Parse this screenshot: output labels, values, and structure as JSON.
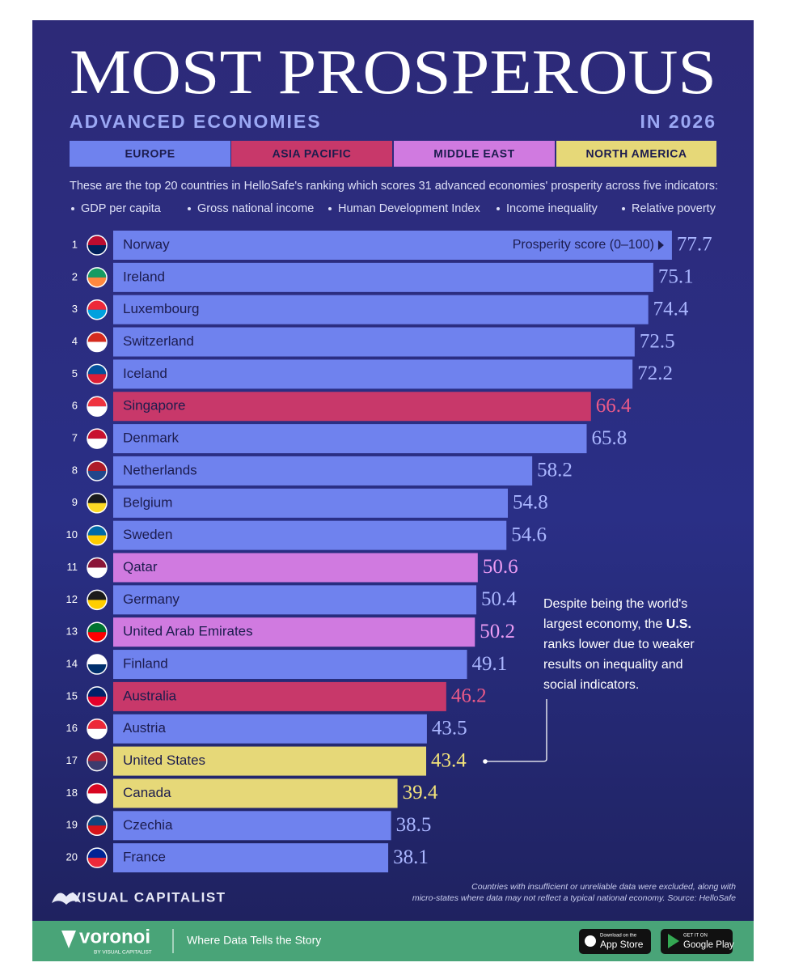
{
  "chart_data": {
    "type": "bar",
    "title": "MOST PROSPEROUS",
    "subtitle": "ADVANCED ECONOMIES",
    "year": "IN 2026",
    "description": "These are the top 20 countries in HelloSafe's ranking which scores 31 advanced economies' prosperity across five indicators:",
    "indicators": [
      "GDP per capita",
      "Gross national income",
      "Human Development Index",
      "Income inequality",
      "Relative poverty"
    ],
    "value_axis_label": "Prosperity score (0–100)",
    "ranks": [
      1,
      2,
      3,
      4,
      5,
      6,
      7,
      8,
      9,
      10,
      11,
      12,
      13,
      14,
      15,
      16,
      17,
      18,
      19,
      20
    ],
    "categories": [
      "Norway",
      "Ireland",
      "Luxembourg",
      "Switzerland",
      "Iceland",
      "Singapore",
      "Denmark",
      "Netherlands",
      "Belgium",
      "Sweden",
      "Qatar",
      "Germany",
      "United Arab Emirates",
      "Finland",
      "Australia",
      "Austria",
      "United States",
      "Canada",
      "Czechia",
      "France"
    ],
    "flag_colors": [
      [
        "#ba0c2f",
        "#00205b"
      ],
      [
        "#169b62",
        "#ff883e"
      ],
      [
        "#ed2939",
        "#00a1de"
      ],
      [
        "#d52b1e",
        "#ffffff"
      ],
      [
        "#02529c",
        "#dc1e35"
      ],
      [
        "#ef3340",
        "#ffffff"
      ],
      [
        "#c8102e",
        "#ffffff"
      ],
      [
        "#ae1c28",
        "#21468b"
      ],
      [
        "#1a1a1a",
        "#fdda24"
      ],
      [
        "#006aa7",
        "#fecc00"
      ],
      [
        "#8a1538",
        "#ffffff"
      ],
      [
        "#1a1a1a",
        "#ffce00"
      ],
      [
        "#00732f",
        "#ff0000"
      ],
      [
        "#ffffff",
        "#002f6c"
      ],
      [
        "#012169",
        "#e4002b"
      ],
      [
        "#ed2939",
        "#ffffff"
      ],
      [
        "#b22234",
        "#3c3b6e"
      ],
      [
        "#d80621",
        "#ffffff"
      ],
      [
        "#11457e",
        "#d7141a"
      ],
      [
        "#002395",
        "#ed2939"
      ]
    ],
    "series": [
      {
        "name": "EUROPE",
        "color": "#6f82ee",
        "label_color": "#aab6ff",
        "values": [
          77.7,
          75.1,
          74.4,
          72.5,
          72.2,
          null,
          65.8,
          58.2,
          54.8,
          54.6,
          null,
          50.4,
          null,
          49.1,
          null,
          43.5,
          null,
          null,
          38.5,
          38.1
        ]
      },
      {
        "name": "ASIA PACIFIC",
        "color": "#c8386a",
        "label_color": "#ec5a88",
        "values": [
          null,
          null,
          null,
          null,
          null,
          66.4,
          null,
          null,
          null,
          null,
          null,
          null,
          null,
          null,
          46.2,
          null,
          null,
          null,
          null,
          null
        ]
      },
      {
        "name": "MIDDLE EAST",
        "color": "#d07ae0",
        "label_color": "#eb9cf3",
        "values": [
          null,
          null,
          null,
          null,
          null,
          null,
          null,
          null,
          null,
          null,
          50.6,
          null,
          50.2,
          null,
          null,
          null,
          null,
          null,
          null,
          null
        ]
      },
      {
        "name": "NORTH AMERICA",
        "color": "#e6d878",
        "label_color": "#f2e27a",
        "values": [
          null,
          null,
          null,
          null,
          null,
          null,
          null,
          null,
          null,
          null,
          null,
          null,
          null,
          null,
          null,
          null,
          43.4,
          39.4,
          null,
          null
        ]
      }
    ],
    "annotation": {
      "lines": [
        "Despite being the world's",
        "largest economy, the ",
        "U.S.",
        "ranks lower due to weaker",
        "results on inequality and",
        "social indicators."
      ]
    },
    "footnote": [
      "Countries with insufficient or unreliable data were excluded, along with",
      "micro-states where data may not reflect a typical national economy. Source: HelloSafe"
    ],
    "brand": "VISUAL CAPITALIST",
    "footer": {
      "logo": "voronoi",
      "logo_sub": "BY VISUAL CAPITALIST",
      "tagline": "Where Data Tells the Story",
      "app_store": [
        "Download on the",
        "App Store"
      ],
      "google_play": [
        "GET IT ON",
        "Google Play"
      ]
    }
  }
}
